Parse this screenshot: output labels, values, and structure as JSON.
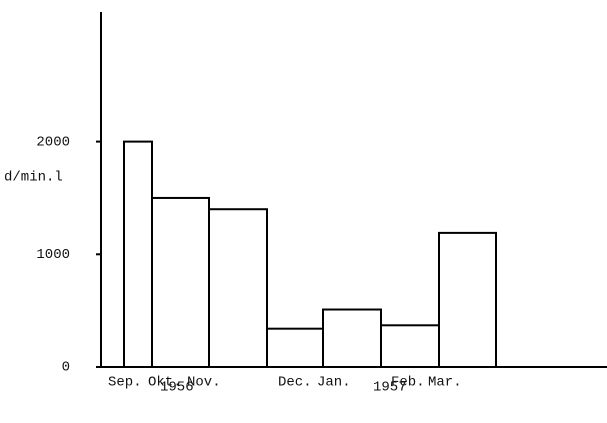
{
  "chart_data": {
    "type": "bar",
    "y_axis_label": "d/min.l",
    "categories": [
      "Sep.",
      "Okt.",
      "Nov.",
      "Dec.",
      "Jan.",
      "Feb.",
      "Mar."
    ],
    "values": [
      2000,
      1500,
      1400,
      340,
      510,
      370,
      1190
    ],
    "annotations": [
      "1956",
      "1957"
    ],
    "color": "#ffffff",
    "ylim": [
      0,
      3150
    ],
    "yticks": [
      0,
      1000,
      2000
    ],
    "grid": false
  }
}
